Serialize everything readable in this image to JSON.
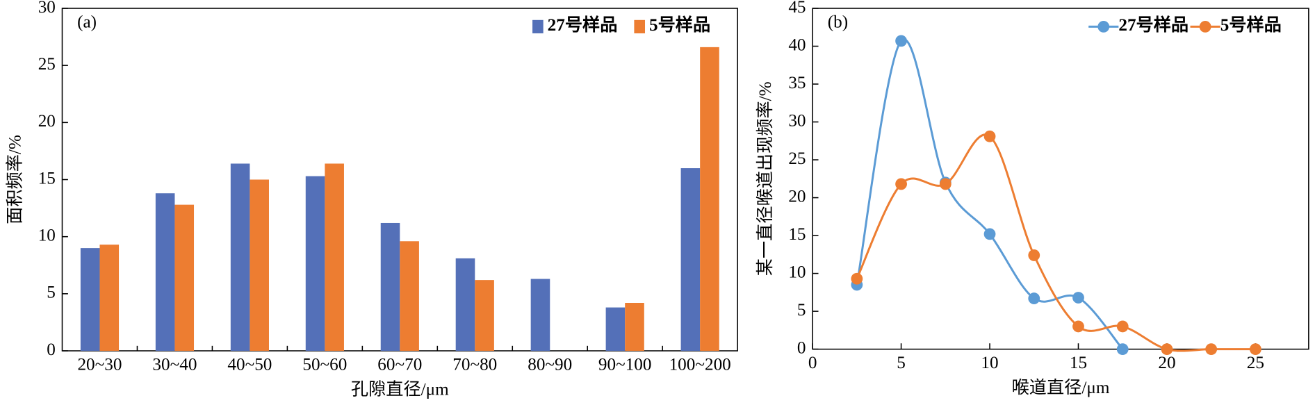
{
  "chart_data": [
    {
      "type": "bar",
      "title": "(a)",
      "x_label": "孔隙直径/μm",
      "y_label": "面积频率/%",
      "categories": [
        "20~30",
        "30~40",
        "40~50",
        "50~60",
        "60~70",
        "70~80",
        "80~90",
        "90~100",
        "100~200"
      ],
      "series": [
        {
          "name": "27号样品",
          "color": "#5470b8",
          "values": [
            9.0,
            13.8,
            16.4,
            15.3,
            11.2,
            8.1,
            6.3,
            3.8,
            16.0
          ]
        },
        {
          "name": "5号样品",
          "color": "#ed7d31",
          "values": [
            9.3,
            12.8,
            15.0,
            16.4,
            9.6,
            6.2,
            0,
            4.2,
            26.6
          ]
        }
      ],
      "ylim": [
        0,
        30
      ],
      "yticks": [
        0,
        5,
        10,
        15,
        20,
        25,
        30
      ],
      "legend": "upper right"
    },
    {
      "type": "line",
      "title": "(b)",
      "x_label": "喉道直径/μm",
      "y_label": "某一直径喉道出现频率/%",
      "x": [
        2.5,
        5,
        7.5,
        10,
        12.5,
        15,
        17.5,
        20,
        22.5,
        25
      ],
      "series": [
        {
          "name": "27号样品",
          "color": "#5b9bd5",
          "values": [
            8.5,
            40.7,
            22.0,
            15.2,
            6.7,
            6.8,
            0,
            null,
            null,
            null
          ]
        },
        {
          "name": "5号样品",
          "color": "#ed7d31",
          "values": [
            9.3,
            21.8,
            21.8,
            28.1,
            12.4,
            3.0,
            3.0,
            0,
            0,
            0
          ]
        }
      ],
      "xlim": [
        0,
        28
      ],
      "xticks": [
        0,
        5,
        10,
        15,
        20,
        25
      ],
      "ylim": [
        0,
        45
      ],
      "yticks": [
        0,
        5,
        10,
        15,
        20,
        25,
        30,
        35,
        40,
        45
      ],
      "legend": "upper right"
    }
  ]
}
